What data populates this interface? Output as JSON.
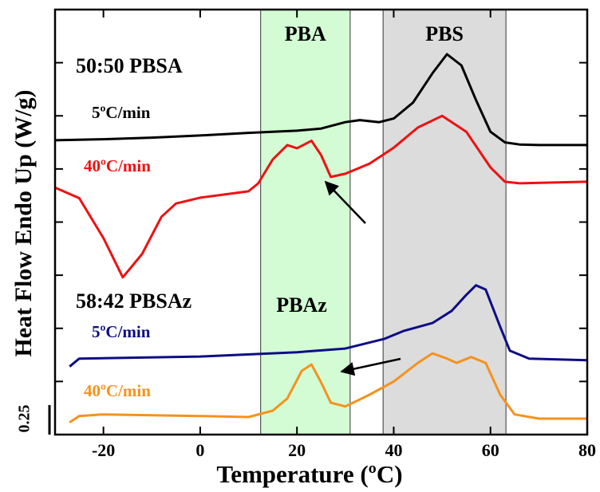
{
  "chart_data": {
    "type": "line",
    "x_label": "Temperature (ºC)",
    "y_label": "Heat Flow Endo Up (W/g)",
    "scale_label": "0.25",
    "xlim": [
      -30,
      80
    ],
    "xticks": [
      -20,
      0,
      20,
      40,
      60,
      80
    ],
    "ylim": [
      0,
      8
    ],
    "regions": [
      {
        "label": "PBA",
        "from": 12.5,
        "to": 31,
        "color": "#d4fcd4"
      },
      {
        "label": "PBS",
        "from": 37.8,
        "to": 63.2,
        "color": "#dcdcdc"
      }
    ],
    "annotations": [
      "50:50 PBSA",
      "58:42 PBSAz",
      "PBAz"
    ],
    "series": [
      {
        "name": "5ºC/min",
        "color": "#000000",
        "x": [
          -30,
          -20,
          -10,
          0,
          10,
          20,
          25,
          30,
          33,
          37,
          40,
          44,
          48,
          51,
          54,
          57,
          60,
          63,
          66,
          70,
          80
        ],
        "values": [
          5.54,
          5.56,
          5.59,
          5.63,
          5.68,
          5.72,
          5.76,
          5.88,
          5.92,
          5.88,
          5.95,
          6.25,
          6.8,
          7.16,
          6.95,
          6.3,
          5.7,
          5.5,
          5.46,
          5.45,
          5.45
        ]
      },
      {
        "name": "40ºC/min",
        "color": "#ee1111",
        "x": [
          -30,
          -25,
          -20,
          -16,
          -12,
          -8,
          -5,
          0,
          10,
          12,
          15,
          18,
          20,
          23,
          25,
          27,
          30,
          35,
          40,
          45,
          50,
          55,
          60,
          63,
          66,
          80
        ],
        "values": [
          4.65,
          4.45,
          3.7,
          2.96,
          3.4,
          4.1,
          4.35,
          4.46,
          4.58,
          4.73,
          5.18,
          5.45,
          5.39,
          5.53,
          5.26,
          4.85,
          4.91,
          5.1,
          5.4,
          5.78,
          6.0,
          5.7,
          5.03,
          4.76,
          4.73,
          4.76
        ]
      },
      {
        "name": "5ºC/min",
        "color": "#0d0d85",
        "x": [
          -27,
          -25,
          0,
          20,
          30,
          38,
          42,
          48,
          52,
          55,
          57,
          59,
          62,
          64,
          68,
          80
        ],
        "values": [
          1.28,
          1.43,
          1.47,
          1.55,
          1.62,
          1.8,
          1.95,
          2.1,
          2.33,
          2.63,
          2.81,
          2.73,
          2.03,
          1.58,
          1.43,
          1.4
        ]
      },
      {
        "name": "40ºC/min",
        "color": "#f5921e",
        "x": [
          -27,
          -25,
          -20,
          0,
          10,
          15,
          18,
          21,
          23,
          25,
          27,
          30,
          35,
          40,
          45,
          48,
          51,
          53,
          56,
          59,
          62,
          65,
          70,
          80
        ],
        "values": [
          0.23,
          0.35,
          0.38,
          0.35,
          0.33,
          0.45,
          0.68,
          1.2,
          1.32,
          0.98,
          0.6,
          0.53,
          0.75,
          1.0,
          1.35,
          1.53,
          1.43,
          1.35,
          1.46,
          1.35,
          0.75,
          0.38,
          0.3,
          0.3
        ]
      }
    ]
  }
}
